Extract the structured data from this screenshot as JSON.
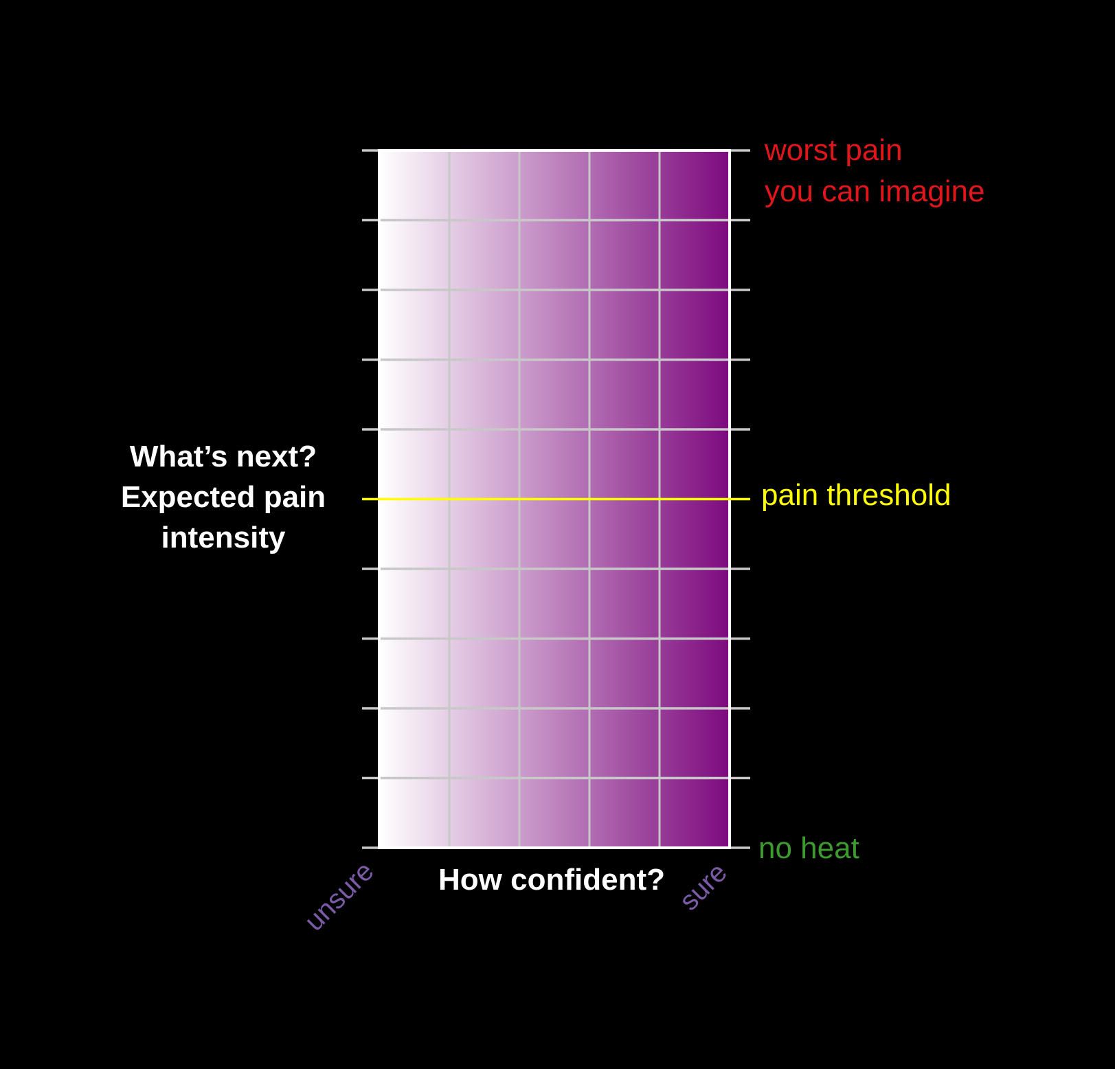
{
  "y_axis": {
    "label_lines": [
      "What’s next?",
      "Expected pain",
      "intensity"
    ],
    "top_label_lines": [
      "worst pain",
      "you can imagine"
    ],
    "threshold_label": "pain threshold",
    "bottom_label": "no heat",
    "num_intervals": 10,
    "threshold_level": 5
  },
  "x_axis": {
    "label": "How confident?",
    "left_label": "unsure",
    "right_label": "sure",
    "num_columns": 5
  },
  "colors": {
    "background": "#000000",
    "gradient_start": "#ffffff",
    "gradient_end": "#7d0a7e",
    "grid": "#c8c8c8",
    "frame": "#ffffff",
    "threshold": "#ffff00",
    "top_label": "#e0161b",
    "bottom_label": "#3d9a2f",
    "end_labels": "#7b5aa6",
    "axis_text": "#ffffff"
  }
}
